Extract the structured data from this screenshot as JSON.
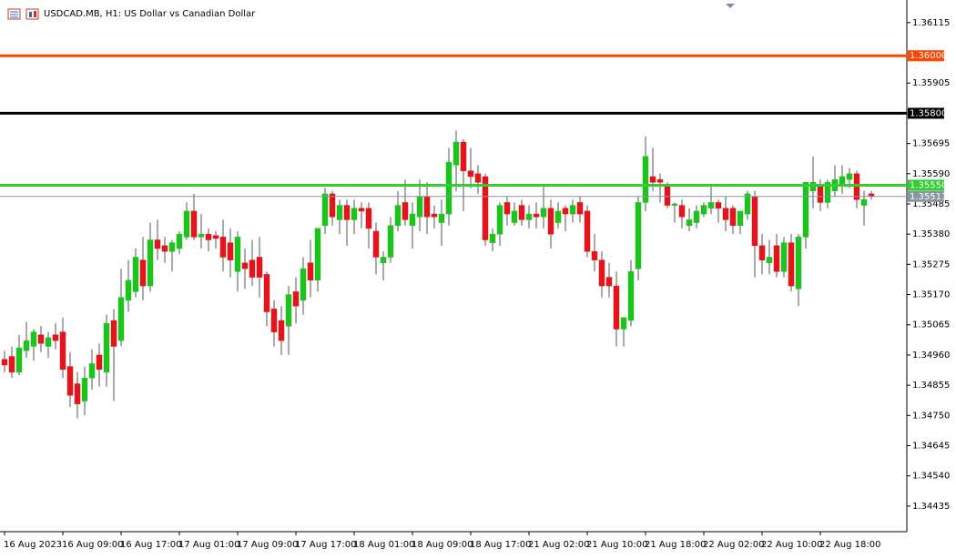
{
  "chart_data": {
    "type": "candlestick",
    "title": "USDCAD.MB, H1:  US Dollar vs Canadian Dollar",
    "up_color": "#1fc21f",
    "down_color": "#e0161d",
    "categories": [
      "16 Aug 2023",
      null,
      null,
      null,
      null,
      null,
      null,
      null,
      "16 Aug 09:00",
      null,
      null,
      null,
      null,
      null,
      null,
      null,
      "16 Aug 17:00",
      null,
      null,
      null,
      null,
      null,
      null,
      null,
      "17 Aug 01:00",
      null,
      null,
      null,
      null,
      null,
      null,
      null,
      "17 Aug 09:00",
      null,
      null,
      null,
      null,
      null,
      null,
      null,
      "17 Aug 17:00",
      null,
      null,
      null,
      null,
      null,
      null,
      null,
      "18 Aug 01:00",
      null,
      null,
      null,
      null,
      null,
      null,
      null,
      "18 Aug 09:00",
      null,
      null,
      null,
      null,
      null,
      null,
      null,
      "18 Aug 17:00",
      null,
      null,
      null,
      null,
      null,
      null,
      null,
      "21 Aug 02:00",
      null,
      null,
      null,
      null,
      null,
      null,
      null,
      "21 Aug 10:00",
      null,
      null,
      null,
      null,
      null,
      null,
      null,
      "21 Aug 18:00",
      null,
      null,
      null,
      null,
      null,
      null,
      null,
      "22 Aug 02:00",
      null,
      null,
      null,
      null,
      null,
      null,
      null,
      "22 Aug 10:00",
      null,
      null,
      null,
      null,
      null,
      null,
      null,
      "22 Aug 18:00",
      null,
      null,
      null,
      null,
      null,
      null,
      null
    ],
    "open": [
      1.34945,
      1.34955,
      1.349,
      1.34975,
      1.3499,
      1.3503,
      1.3499,
      1.3503,
      1.3504,
      1.3492,
      1.3486,
      1.348,
      1.3488,
      1.3496,
      1.349,
      1.3508,
      1.3501,
      1.3515,
      1.3518,
      1.3529,
      1.352,
      1.3536,
      1.3534,
      1.3532,
      1.3533,
      1.3537,
      1.3546,
      1.3537,
      1.3538,
      1.35375,
      1.3537,
      1.3535,
      1.3525,
      1.3528,
      1.3529,
      1.353,
      1.3524,
      1.3512,
      1.3508,
      1.3506,
      1.3518,
      1.3515,
      1.3528,
      1.3522,
      1.3541,
      1.3552,
      1.3543,
      1.3548,
      1.3543,
      1.3547,
      1.3547,
      1.3539,
      1.3528,
      1.353,
      1.3541,
      1.3549,
      1.3541,
      1.3544,
      1.3551,
      1.3545,
      1.3542,
      1.3545,
      1.3562,
      1.357,
      1.356,
      1.3559,
      1.3558,
      1.3535,
      1.3538,
      1.3549,
      1.3542,
      1.3548,
      1.3543,
      1.3545,
      1.3544,
      1.3547,
      1.3542,
      1.3547,
      1.3545,
      1.3549,
      1.3546,
      1.3532,
      1.3529,
      1.3523,
      1.352,
      1.3505,
      1.3508,
      1.3526,
      1.3549,
      1.3558,
      1.3557,
      1.3555,
      1.3548,
      1.3548,
      1.3541,
      1.3542,
      1.3545,
      1.3547,
      1.3549,
      1.3547,
      1.3547,
      1.3541,
      1.3545,
      1.3551,
      1.3534,
      1.3528,
      1.3534,
      1.3525,
      1.3535,
      1.3519,
      1.3537,
      1.3553,
      1.3555,
      1.3549,
      1.3553,
      1.3555,
      1.3557,
      1.3559,
      1.3548,
      1.3552
    ],
    "high": [
      1.34975,
      1.3499,
      1.3503,
      1.35075,
      1.3505,
      1.3506,
      1.3504,
      1.3507,
      1.3509,
      1.3497,
      1.349,
      1.3492,
      1.3498,
      1.35,
      1.351,
      1.3512,
      1.3526,
      1.3529,
      1.3533,
      1.3537,
      1.3542,
      1.3543,
      1.3537,
      1.3536,
      1.3539,
      1.3549,
      1.3552,
      1.3545,
      1.354,
      1.3539,
      1.3543,
      1.354,
      1.3539,
      1.3533,
      1.3536,
      1.3537,
      1.3525,
      1.3515,
      1.3513,
      1.352,
      1.3523,
      1.353,
      1.3536,
      1.354,
      1.3554,
      1.3553,
      1.355,
      1.355,
      1.355,
      1.3549,
      1.3549,
      1.3542,
      1.3532,
      1.3544,
      1.3553,
      1.3557,
      1.3549,
      1.3557,
      1.3556,
      1.3548,
      1.355,
      1.3568,
      1.3574,
      1.3571,
      1.3568,
      1.3562,
      1.3559,
      1.354,
      1.3549,
      1.3551,
      1.3549,
      1.355,
      1.3548,
      1.3549,
      1.3555,
      1.355,
      1.3549,
      1.3548,
      1.355,
      1.3551,
      1.3548,
      1.3538,
      1.3532,
      1.3528,
      1.3525,
      1.3509,
      1.3529,
      1.3551,
      1.3572,
      1.3568,
      1.3559,
      1.3556,
      1.3549,
      1.355,
      1.3547,
      1.3548,
      1.3549,
      1.3555,
      1.355,
      1.3551,
      1.3548,
      1.3546,
      1.3553,
      1.3553,
      1.3538,
      1.3536,
      1.3538,
      1.3537,
      1.3538,
      1.3538,
      1.3556,
      1.3565,
      1.3557,
      1.3557,
      1.3562,
      1.3562,
      1.3561,
      1.356,
      1.3553,
      1.3553
    ],
    "low": [
      1.349,
      1.3488,
      1.3489,
      1.3495,
      1.3494,
      1.3497,
      1.3495,
      1.3498,
      1.3488,
      1.3478,
      1.3474,
      1.3475,
      1.3484,
      1.3485,
      1.3485,
      1.348,
      1.3499,
      1.3511,
      1.3516,
      1.3515,
      1.3518,
      1.3529,
      1.3528,
      1.3525,
      1.3531,
      1.3536,
      1.3536,
      1.3533,
      1.3532,
      1.3533,
      1.3525,
      1.3523,
      1.3518,
      1.3519,
      1.352,
      1.3516,
      1.3506,
      1.3499,
      1.3496,
      1.3496,
      1.3507,
      1.351,
      1.3516,
      1.3518,
      1.3538,
      1.3541,
      1.3538,
      1.3534,
      1.3538,
      1.354,
      1.3533,
      1.3524,
      1.3522,
      1.3528,
      1.3539,
      1.3541,
      1.3533,
      1.3539,
      1.3538,
      1.354,
      1.3534,
      1.3541,
      1.3553,
      1.3546,
      1.3554,
      1.3552,
      1.3534,
      1.3532,
      1.3534,
      1.3541,
      1.3541,
      1.3541,
      1.354,
      1.354,
      1.354,
      1.3533,
      1.354,
      1.3539,
      1.3542,
      1.3542,
      1.353,
      1.3525,
      1.3516,
      1.3516,
      1.3499,
      1.3499,
      1.3506,
      1.3522,
      1.3546,
      1.3553,
      1.3549,
      1.3547,
      1.3542,
      1.354,
      1.3539,
      1.354,
      1.3544,
      1.3545,
      1.3542,
      1.3539,
      1.3538,
      1.3538,
      1.3543,
      1.3523,
      1.3524,
      1.3524,
      1.3523,
      1.3523,
      1.3518,
      1.3513,
      1.3533,
      1.3547,
      1.3546,
      1.3547,
      1.3551,
      1.3552,
      1.3554,
      1.3547,
      1.3541,
      1.355
    ],
    "close": [
      1.34925,
      1.349,
      1.34985,
      1.3501,
      1.3504,
      1.35,
      1.3502,
      1.3501,
      1.3491,
      1.3482,
      1.3479,
      1.3488,
      1.3493,
      1.3491,
      1.3507,
      1.3499,
      1.3516,
      1.3522,
      1.353,
      1.352,
      1.3536,
      1.3533,
      1.3532,
      1.3535,
      1.3538,
      1.3546,
      1.3537,
      1.3538,
      1.3536,
      1.35365,
      1.353,
      1.3529,
      1.3537,
      1.3526,
      1.3523,
      1.3523,
      1.3511,
      1.3504,
      1.3501,
      1.3517,
      1.3513,
      1.3526,
      1.3522,
      1.354,
      1.3552,
      1.3544,
      1.3548,
      1.3543,
      1.3547,
      1.3546,
      1.354,
      1.353,
      1.353,
      1.3541,
      1.3548,
      1.3543,
      1.3545,
      1.3551,
      1.3544,
      1.3544,
      1.3545,
      1.3563,
      1.357,
      1.356,
      1.3558,
      1.3556,
      1.3536,
      1.3538,
      1.3548,
      1.3545,
      1.3546,
      1.3543,
      1.3545,
      1.3544,
      1.3547,
      1.3538,
      1.3546,
      1.3545,
      1.3548,
      1.3545,
      1.3532,
      1.3529,
      1.352,
      1.352,
      1.3505,
      1.3509,
      1.3525,
      1.3549,
      1.3565,
      1.3556,
      1.3556,
      1.3548,
      1.35485,
      1.3544,
      1.3543,
      1.3546,
      1.3548,
      1.3549,
      1.3547,
      1.3543,
      1.3541,
      1.3546,
      1.3552,
      1.3534,
      1.3529,
      1.353,
      1.3525,
      1.3535,
      1.352,
      1.3537,
      1.3556,
      1.3556,
      1.3549,
      1.3556,
      1.3557,
      1.3558,
      1.3559,
      1.355,
      1.355,
      1.35511
    ],
    "ylim": [
      1.34346,
      1.36181
    ],
    "yticks": [
      1.36115,
      1.35905,
      1.35695,
      {
        "value": 1.3559,
        "label": "1.35590"
      },
      1.35485,
      {
        "value": 1.3538,
        "label": "1.35380"
      },
      1.35275,
      {
        "value": 1.3517,
        "label": "1.35170"
      },
      1.35065,
      {
        "value": 1.3496,
        "label": "1.34960"
      },
      1.34855,
      {
        "value": 1.3475,
        "label": "1.34750"
      },
      1.34645,
      {
        "value": 1.3454,
        "label": "1.34540"
      },
      1.34435
    ],
    "levels": [
      {
        "value": 1.36,
        "label": "1.36000",
        "color": "#ff4500"
      },
      {
        "value": 1.358,
        "label": "1.35800",
        "color": "#000000"
      },
      {
        "value": 1.3555,
        "label": "1.35550",
        "color": "#32cd32"
      }
    ],
    "last_price": {
      "value": 1.35511,
      "label": "1.35511",
      "color": "#8a969e"
    },
    "grid": false
  }
}
